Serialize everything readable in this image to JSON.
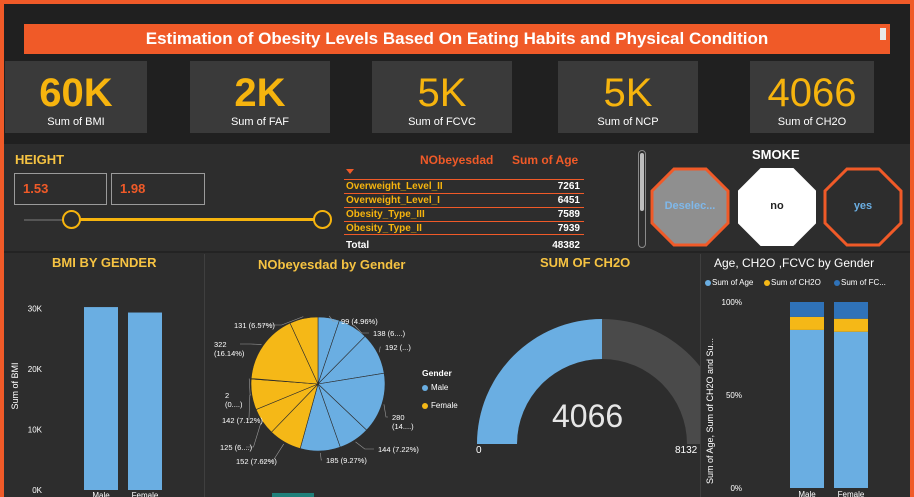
{
  "header": {
    "title": "Estimation of Obesity Levels Based On Eating Habits and Physical Condition"
  },
  "kpis": [
    {
      "value": "60K",
      "label": "Sum of BMI"
    },
    {
      "value": "2K",
      "label": "Sum of FAF"
    },
    {
      "value": "5K",
      "label": "Sum of FCVC"
    },
    {
      "value": "5K",
      "label": "Sum of NCP"
    },
    {
      "value": "4066",
      "label": "Sum of CH2O"
    }
  ],
  "height_slicer": {
    "title": "HEIGHT",
    "min": "1.53",
    "max": "1.98"
  },
  "table": {
    "col1": "NObeyesdad",
    "col2": "Sum of Age",
    "rows": [
      {
        "name": "Overweight_Level_II",
        "value": "7261"
      },
      {
        "name": "Overweight_Level_I",
        "value": "6451"
      },
      {
        "name": "Obesity_Type_III",
        "value": "7589"
      },
      {
        "name": "Obesity_Type_II",
        "value": "7939"
      }
    ],
    "total_label": "Total",
    "total_value": "48382"
  },
  "smoke": {
    "title": "SMOKE",
    "buttons": [
      {
        "label": "Deselec...",
        "state": "selected"
      },
      {
        "label": "no",
        "state": "normal"
      },
      {
        "label": "yes",
        "state": "normal"
      }
    ]
  },
  "colors": {
    "blue": "#6aaee2",
    "yellow": "#f5b817",
    "dark_blue": "#2f72b8",
    "orange": "#f05a28"
  },
  "chart_data": [
    {
      "type": "bar",
      "title": "BMI BY GENDER",
      "ylabel": "Sum of BMI",
      "categories": [
        "Male",
        "Female"
      ],
      "values": [
        30200,
        29300
      ],
      "ylim": [
        0,
        35000
      ],
      "yticks": [
        "0K",
        "10K",
        "20K",
        "30K"
      ],
      "grid": false
    },
    {
      "type": "pie",
      "title": "NObeyesdad by Gender",
      "legend_title": "Gender",
      "legend": [
        "Male",
        "Female"
      ],
      "slices": [
        {
          "label": "99 (4.96%)",
          "value": 99,
          "gender": "Male"
        },
        {
          "label": "138 (6....)",
          "value": 138,
          "gender": "Male"
        },
        {
          "label": "192 (...)",
          "value": 192,
          "gender": "Male"
        },
        {
          "label": "280 (14....)",
          "value": 280,
          "gender": "Male"
        },
        {
          "label": "144 (7.22%)",
          "value": 144,
          "gender": "Male"
        },
        {
          "label": "185 (9.27%)",
          "value": 185,
          "gender": "Male"
        },
        {
          "label": "152 (7.62%)",
          "value": 152,
          "gender": "Female"
        },
        {
          "label": "125 (6....)",
          "value": 125,
          "gender": "Female"
        },
        {
          "label": "142 (7.12%)",
          "value": 142,
          "gender": "Female"
        },
        {
          "label": "2 (0....)",
          "value": 2,
          "gender": "Female"
        },
        {
          "label": "322 (16.14%)",
          "value": 322,
          "gender": "Female"
        },
        {
          "label": "131 (6.57%)",
          "value": 131,
          "gender": "Female"
        }
      ]
    },
    {
      "type": "gauge",
      "title": "SUM OF CH2O",
      "value": 4066,
      "value_label": "4066",
      "min": 0,
      "max": 8132,
      "min_label": "0",
      "max_label": "8132"
    },
    {
      "type": "bar",
      "stacked_percent": true,
      "title": "Age, CH2O ,FCVC by Gender",
      "ylabel": "Sum of Age, Sum of CH2O and Su...",
      "categories": [
        "Male",
        "Female"
      ],
      "series": [
        {
          "name": "Sum of Age",
          "values": [
            85,
            84
          ]
        },
        {
          "name": "Sum of CH2O",
          "values": [
            7,
            7
          ]
        },
        {
          "name": "Sum of FC...",
          "values": [
            8,
            9
          ]
        }
      ],
      "ylim": [
        0,
        100
      ],
      "yticks": [
        "0%",
        "50%",
        "100%"
      ]
    }
  ]
}
